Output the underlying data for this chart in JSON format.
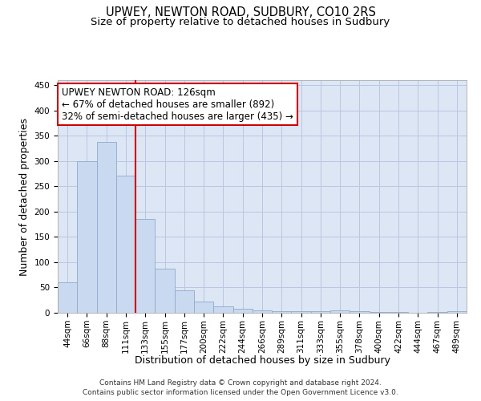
{
  "title": "UPWEY, NEWTON ROAD, SUDBURY, CO10 2RS",
  "subtitle": "Size of property relative to detached houses in Sudbury",
  "xlabel": "Distribution of detached houses by size in Sudbury",
  "ylabel": "Number of detached properties",
  "categories": [
    "44sqm",
    "66sqm",
    "88sqm",
    "111sqm",
    "133sqm",
    "155sqm",
    "177sqm",
    "200sqm",
    "222sqm",
    "244sqm",
    "266sqm",
    "289sqm",
    "311sqm",
    "333sqm",
    "355sqm",
    "378sqm",
    "400sqm",
    "422sqm",
    "444sqm",
    "467sqm",
    "489sqm"
  ],
  "values": [
    60,
    300,
    338,
    272,
    185,
    88,
    45,
    22,
    12,
    8,
    5,
    3,
    3,
    3,
    5,
    3,
    1,
    1,
    0,
    1,
    3
  ],
  "bar_color": "#c9d9ef",
  "bar_edge_color": "#8eaacc",
  "vertical_line_index": 4,
  "vertical_line_color": "#cc0000",
  "annotation_line1": "UPWEY NEWTON ROAD: 126sqm",
  "annotation_line2": "← 67% of detached houses are smaller (892)",
  "annotation_line3": "32% of semi-detached houses are larger (435) →",
  "annotation_box_color": "#ffffff",
  "annotation_box_edge_color": "#cc0000",
  "ylim": [
    0,
    460
  ],
  "yticks": [
    0,
    50,
    100,
    150,
    200,
    250,
    300,
    350,
    400,
    450
  ],
  "footer_line1": "Contains HM Land Registry data © Crown copyright and database right 2024.",
  "footer_line2": "Contains public sector information licensed under the Open Government Licence v3.0.",
  "background_color": "#ffffff",
  "plot_bg_color": "#dce6f5",
  "grid_color": "#b8c8e0",
  "title_fontsize": 10.5,
  "subtitle_fontsize": 9.5,
  "axis_label_fontsize": 9,
  "tick_fontsize": 7.5,
  "annotation_fontsize": 8.5,
  "footer_fontsize": 6.5
}
